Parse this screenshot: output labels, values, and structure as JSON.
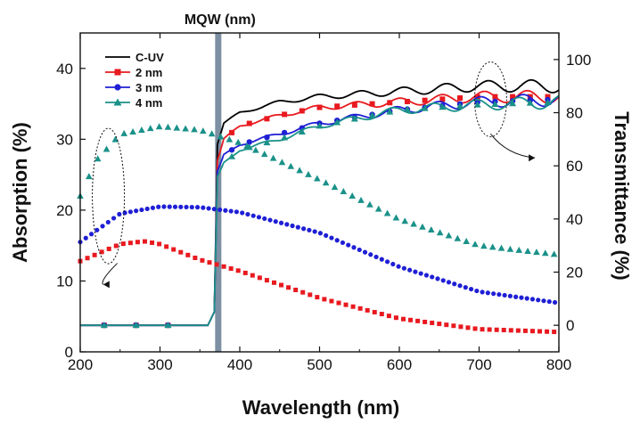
{
  "chart_data": {
    "type": "line",
    "title": "",
    "xlabel": "Wavelength (nm)",
    "ylabel_left": "Absorption (%)",
    "ylabel_right": "Transmittance (%)",
    "xlim": [
      200,
      800
    ],
    "ylim_left": [
      0,
      45
    ],
    "ylim_right": [
      -10,
      110
    ],
    "x_ticks": [
      200,
      300,
      400,
      500,
      600,
      700,
      800
    ],
    "y_ticks_left": [
      0,
      10,
      20,
      30,
      40
    ],
    "y_ticks_right": [
      0,
      20,
      40,
      60,
      80,
      100
    ],
    "annotation": {
      "label": "MQW (nm)",
      "wavelength": 373
    },
    "legend": [
      "C-UV",
      "2 nm",
      "3 nm",
      "4 nm"
    ],
    "colors": {
      "C-UV": "#000000",
      "2 nm": "#e8191f",
      "3 nm": "#1f1fd6",
      "4 nm": "#1a9189",
      "band": "#7d8fa3"
    },
    "absorption_series": [
      {
        "name": "2 nm",
        "x": [
          200,
          250,
          280,
          300,
          350,
          400,
          500,
          600,
          700,
          800
        ],
        "values": [
          12.8,
          15.2,
          15.6,
          15.2,
          13.0,
          11.4,
          7.6,
          4.7,
          3.2,
          2.8
        ]
      },
      {
        "name": "3 nm",
        "x": [
          200,
          250,
          300,
          350,
          400,
          500,
          600,
          700,
          800
        ],
        "values": [
          15.5,
          19.5,
          20.5,
          20.4,
          19.7,
          16.8,
          12.0,
          8.5,
          6.9
        ]
      },
      {
        "name": "4 nm",
        "x": [
          200,
          220,
          250,
          300,
          350,
          400,
          500,
          600,
          700,
          800
        ],
        "values": [
          22.0,
          27.0,
          30.7,
          31.8,
          31.3,
          29.5,
          24.3,
          18.7,
          15.0,
          13.7
        ]
      }
    ],
    "transmittance_series": [
      {
        "name": "C-UV",
        "x": [
          200,
          360,
          368,
          372,
          380,
          400,
          450,
          500,
          600,
          700,
          800
        ],
        "values": [
          0,
          0,
          5,
          68,
          76,
          80,
          84,
          86,
          88,
          90,
          90
        ]
      },
      {
        "name": "2 nm",
        "x": [
          200,
          360,
          368,
          372,
          380,
          400,
          450,
          500,
          600,
          700,
          800
        ],
        "values": [
          0,
          0,
          5,
          62,
          70,
          75,
          79,
          82,
          84,
          86,
          86
        ]
      },
      {
        "name": "3 nm",
        "x": [
          200,
          360,
          368,
          372,
          380,
          400,
          450,
          500,
          600,
          700,
          800
        ],
        "values": [
          0,
          0,
          5,
          58,
          64,
          68,
          72,
          76,
          81,
          84,
          85
        ]
      },
      {
        "name": "4 nm",
        "x": [
          200,
          360,
          368,
          372,
          380,
          400,
          450,
          500,
          600,
          700,
          800
        ],
        "values": [
          0,
          0,
          5,
          56,
          61,
          66,
          70,
          75,
          81,
          83,
          84
        ]
      }
    ]
  }
}
